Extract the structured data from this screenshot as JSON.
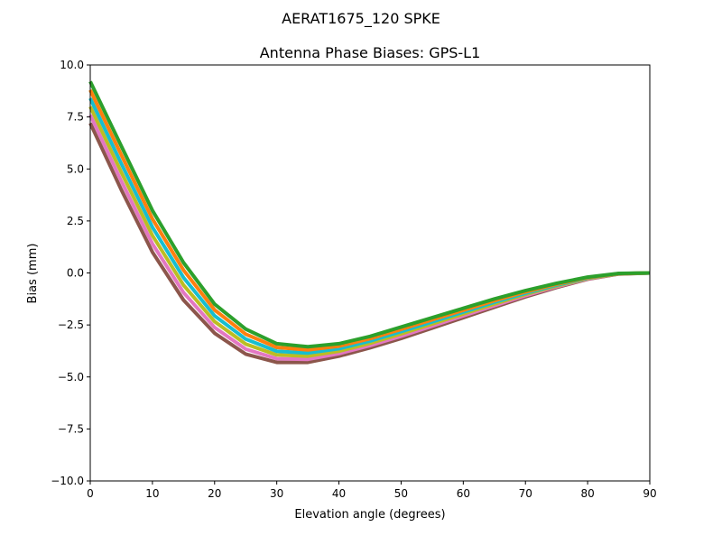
{
  "chart_data": {
    "type": "line",
    "suptitle": "AERAT1675_120   SPKE",
    "title": "Antenna Phase Biases: GPS-L1",
    "xlabel": "Elevation angle (degrees)",
    "ylabel": "Bias (mm)",
    "xlim": [
      0,
      90
    ],
    "ylim": [
      -10,
      10
    ],
    "xticks": [
      0,
      10,
      20,
      30,
      40,
      50,
      60,
      70,
      80,
      90
    ],
    "xtick_labels": [
      "0",
      "10",
      "20",
      "30",
      "40",
      "50",
      "60",
      "70",
      "80",
      "90"
    ],
    "yticks": [
      -10,
      -7.5,
      -5,
      -2.5,
      0,
      2.5,
      5,
      7.5,
      10
    ],
    "ytick_labels": [
      "−10.0",
      "−7.5",
      "−5.0",
      "−2.5",
      "0.0",
      "2.5",
      "5.0",
      "7.5",
      "10.0"
    ],
    "grid": false,
    "x": [
      0,
      5,
      10,
      15,
      20,
      25,
      30,
      35,
      40,
      45,
      50,
      55,
      60,
      65,
      70,
      75,
      80,
      85,
      90
    ],
    "series": [
      {
        "color": "#8c564b",
        "values": [
          7.2,
          4.0,
          1.0,
          -1.3,
          -2.9,
          -3.9,
          -4.3,
          -4.3,
          -4.0,
          -3.6,
          -3.15,
          -2.65,
          -2.15,
          -1.65,
          -1.15,
          -0.7,
          -0.3,
          -0.05,
          0
        ]
      },
      {
        "color": "#e377c2",
        "values": [
          7.6,
          4.42,
          1.4,
          -0.94,
          -2.62,
          -3.66,
          -4.12,
          -4.15,
          -3.88,
          -3.49,
          -3.04,
          -2.55,
          -2.06,
          -1.57,
          -1.09,
          -0.66,
          -0.28,
          -0.04,
          0
        ]
      },
      {
        "color": "#bcbd22",
        "values": [
          8.0,
          4.84,
          1.8,
          -0.58,
          -2.34,
          -3.42,
          -3.94,
          -4.0,
          -3.76,
          -3.38,
          -2.93,
          -2.45,
          -1.97,
          -1.49,
          -1.03,
          -0.62,
          -0.26,
          -0.04,
          0
        ]
      },
      {
        "color": "#17becf",
        "values": [
          8.4,
          5.26,
          2.2,
          -0.22,
          -2.06,
          -3.18,
          -3.76,
          -3.85,
          -3.64,
          -3.27,
          -2.82,
          -2.35,
          -1.88,
          -1.41,
          -0.97,
          -0.58,
          -0.24,
          -0.03,
          0
        ]
      },
      {
        "color": "#ff7f0e",
        "values": [
          8.8,
          5.68,
          2.6,
          0.14,
          -1.78,
          -2.94,
          -3.58,
          -3.7,
          -3.52,
          -3.16,
          -2.71,
          -2.25,
          -1.79,
          -1.33,
          -0.91,
          -0.54,
          -0.22,
          -0.03,
          0
        ]
      },
      {
        "color": "#2ca02c",
        "values": [
          9.2,
          6.1,
          3.0,
          0.5,
          -1.5,
          -2.7,
          -3.4,
          -3.55,
          -3.4,
          -3.05,
          -2.6,
          -2.15,
          -1.7,
          -1.25,
          -0.85,
          -0.5,
          -0.2,
          -0.02,
          0
        ]
      }
    ]
  }
}
